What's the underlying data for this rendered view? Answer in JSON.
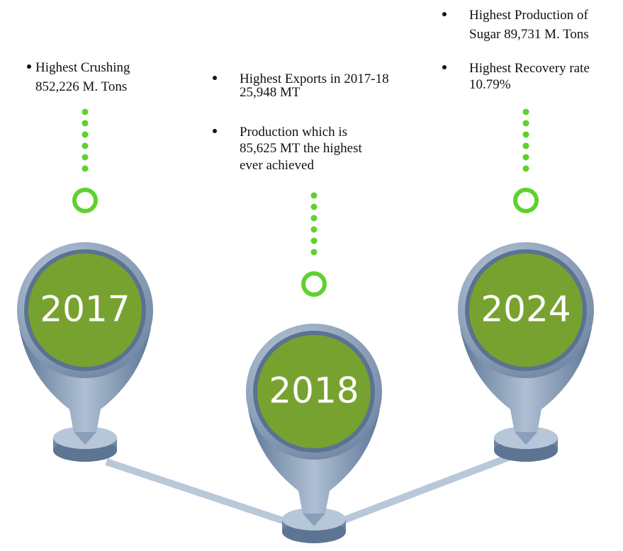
{
  "milestones": [
    {
      "year": "2017",
      "points": [
        {
          "lines": [
            "Highest Crushing",
            "852,226 M. Tons"
          ]
        }
      ]
    },
    {
      "year": "2018",
      "points": [
        {
          "lines": [
            "Highest Exports in 2017-18",
            "25,948 MT"
          ]
        },
        {
          "lines": [
            "Production which is",
            "85,625 MT the highest",
            "ever achieved"
          ]
        }
      ]
    },
    {
      "year": "2024",
      "points": [
        {
          "lines": [
            "Highest Production of",
            "Sugar 89,731 M. Tons"
          ]
        },
        {
          "lines": [
            "Highest Recovery rate",
            "10.79%"
          ]
        }
      ]
    }
  ]
}
